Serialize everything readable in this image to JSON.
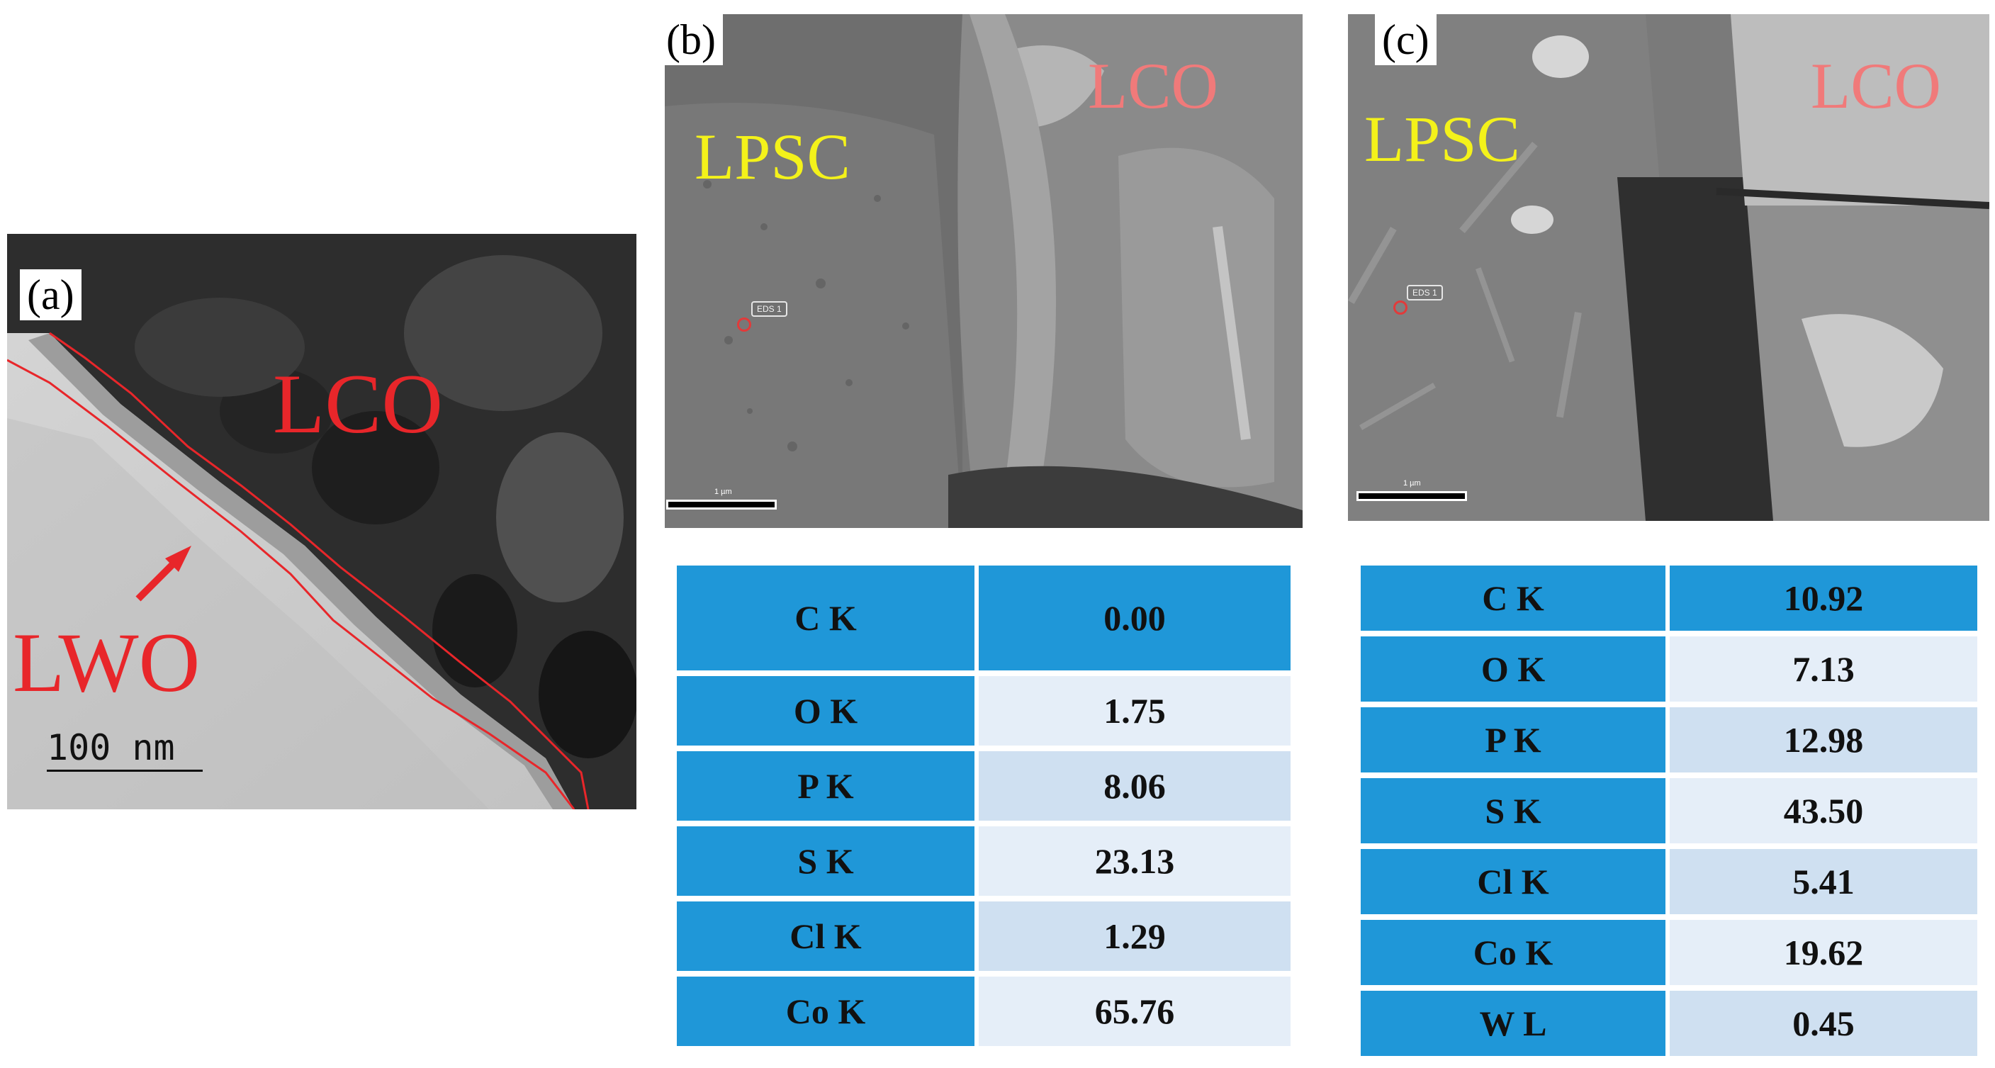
{
  "panels": {
    "a": {
      "tag": "(a)",
      "label_lco": "LCO",
      "label_lwo": "LWO",
      "scale": "100 nm"
    },
    "b": {
      "tag": "(b)",
      "label_lpsc": "LPSC",
      "label_lco": "LCO",
      "spot_label": "EDS 1",
      "scale": "1 µm",
      "table": [
        {
          "element": "C  K",
          "value": "0.00"
        },
        {
          "element": "O  K",
          "value": "1.75"
        },
        {
          "element": "P  K",
          "value": "8.06"
        },
        {
          "element": "S  K",
          "value": "23.13"
        },
        {
          "element": "Cl K",
          "value": "1.29"
        },
        {
          "element": "Co K",
          "value": "65.76"
        }
      ]
    },
    "c": {
      "tag": "(c)",
      "label_lpsc": "LPSC",
      "label_lco": "LCO",
      "spot_label": "EDS 1",
      "scale": "1 µm",
      "table": [
        {
          "element": "C  K",
          "value": "10.92"
        },
        {
          "element": "O  K",
          "value": "7.13"
        },
        {
          "element": "P  K",
          "value": "12.98"
        },
        {
          "element": "S  K",
          "value": "43.50"
        },
        {
          "element": "Cl K",
          "value": "5.41"
        },
        {
          "element": "Co K",
          "value": "19.62"
        },
        {
          "element": "W  L",
          "value": "0.45"
        }
      ]
    }
  },
  "colors": {
    "red_label": "#e8262a",
    "pink_label": "#f07a7a",
    "yellow_label": "#f4f21a",
    "table_blue": "#1f97d8"
  }
}
